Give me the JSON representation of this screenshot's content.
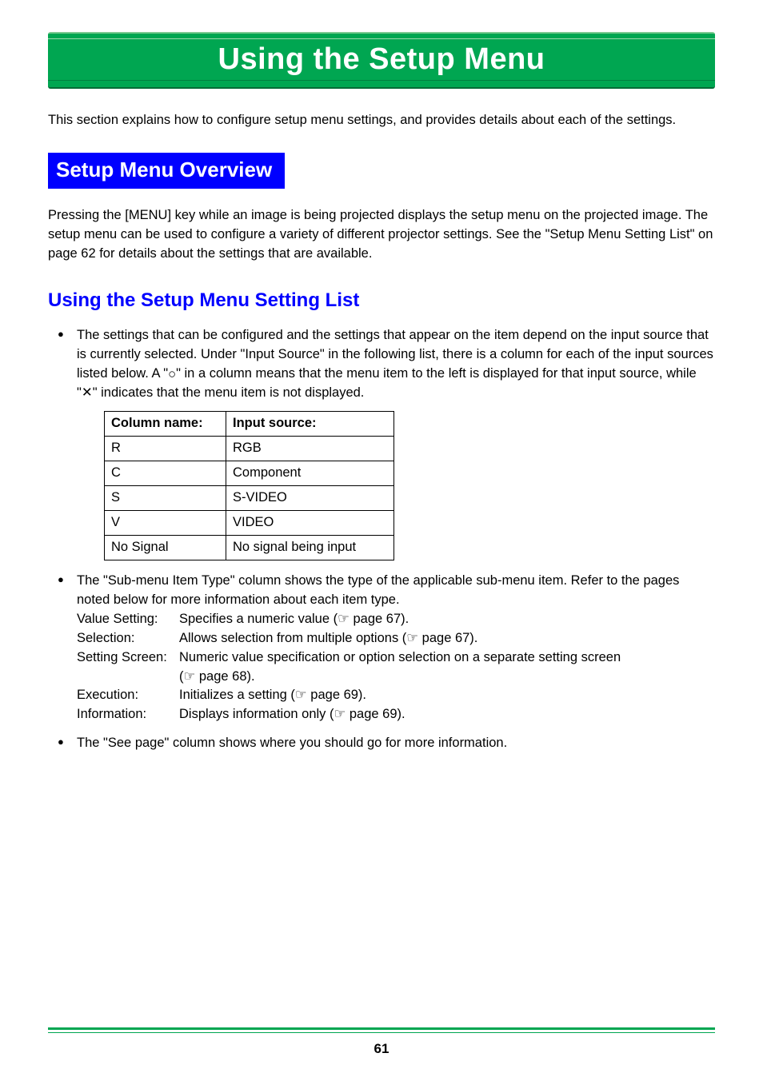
{
  "banner": {
    "title": "Using the Setup Menu"
  },
  "intro": "This section explains how to configure setup menu settings, and provides details about each of the settings.",
  "section": {
    "title": "Setup Menu Overview"
  },
  "overview": "Pressing the [MENU] key while an image is being projected displays the setup menu on the projected image. The setup menu can be used to configure a variety of different projector settings. See the \"Setup Menu Setting List\" on page 62 for details about the settings that are available.",
  "subheading": "Using the Setup Menu Setting List",
  "bullet1_a": "The settings that can be configured and the settings that appear on the item depend on the input source that is currently selected. Under \"Input Source\" in the following list, there is a column for each of the input sources listed below. A \"",
  "bullet1_b": "\" in a column means that the menu item to the left is displayed for that input source, while \"",
  "bullet1_c": "\" indicates that the menu item is not displayed.",
  "symbols": {
    "circle": "○",
    "cross": "✕",
    "pointer": "☞"
  },
  "table": {
    "header": {
      "col1": "Column name:",
      "col2": "Input source:"
    },
    "rows": [
      {
        "c1": "R",
        "c2": "RGB"
      },
      {
        "c1": "C",
        "c2": "Component"
      },
      {
        "c1": "S",
        "c2": "S-VIDEO"
      },
      {
        "c1": "V",
        "c2": "VIDEO"
      },
      {
        "c1": "No Signal",
        "c2": "No signal being input"
      }
    ]
  },
  "bullet2_intro": "The \"Sub-menu Item Type\" column shows the type of the applicable sub-menu item. Refer to the pages noted below for more information about each item type.",
  "types": {
    "t1_label": "Value Setting:",
    "t1_val_a": "Specifies a numeric value (",
    "t1_val_b": " page 67).",
    "t2_label": "Selection:",
    "t2_val_a": "Allows selection from multiple options (",
    "t2_val_b": " page 67).",
    "t3_label": "Setting Screen:",
    "t3_val_a": "Numeric value specification or option selection on a separate setting screen",
    "t3_cont_a": " (",
    "t3_cont_b": " page 68).",
    "t4_label": "Execution:",
    "t4_val_a": "Initializes a setting (",
    "t4_val_b": " page 69).",
    "t5_label": "Information:",
    "t5_val_a": "Displays information only (",
    "t5_val_b": " page 69)."
  },
  "bullet3": "The \"See page\" column shows where you should go for more information.",
  "page_number": "61",
  "colors": {
    "banner_bg": "#00a651",
    "section_bg": "#0000ff",
    "subheading": "#0000ff",
    "text": "#000000",
    "footer_rule": "#00a651"
  }
}
